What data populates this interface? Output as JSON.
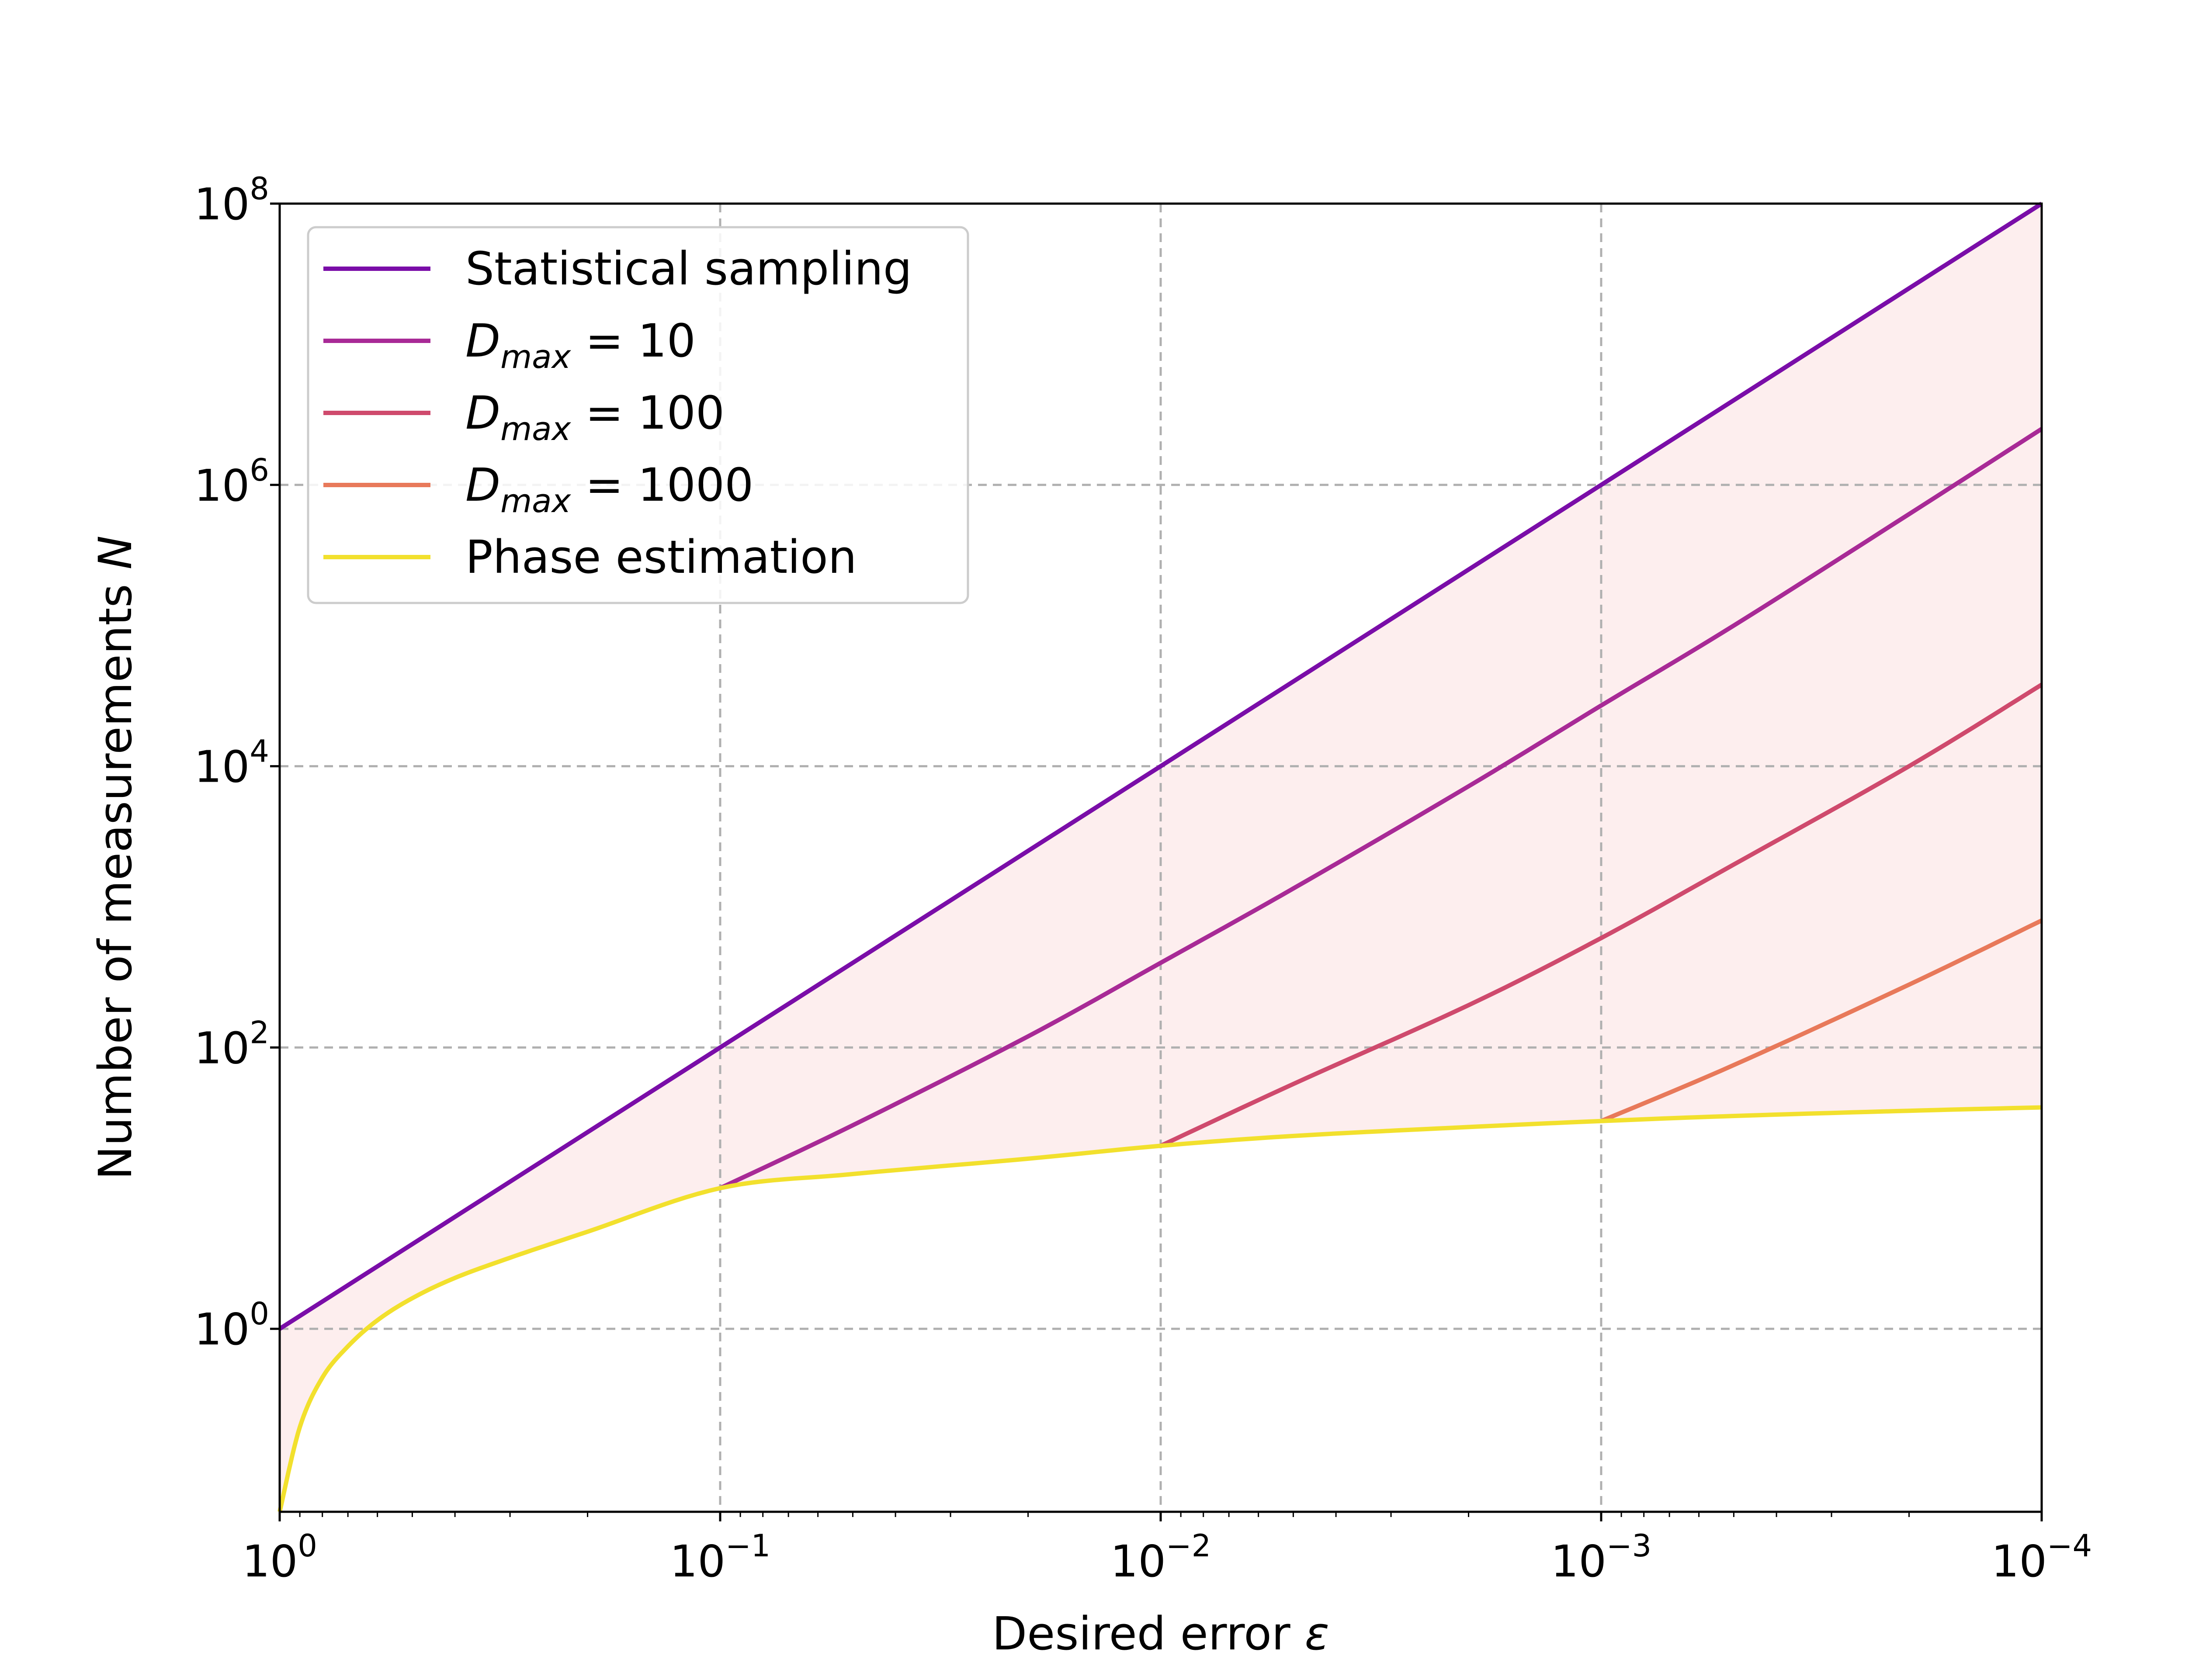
{
  "chart_data": {
    "type": "line",
    "xlabel_text": "Desired error ",
    "xlabel_symbol": "ε",
    "ylabel_text": "Number of measurements ",
    "ylabel_symbol": "N",
    "x_scale": "log",
    "x_reversed": true,
    "y_scale": "log",
    "xlim": [
      1,
      0.0001
    ],
    "ylim": [
      0.05,
      100000000
    ],
    "x_ticks": [
      {
        "base": "10",
        "exp": "0"
      },
      {
        "base": "10",
        "exp": "−1"
      },
      {
        "base": "10",
        "exp": "−2"
      },
      {
        "base": "10",
        "exp": "−3"
      },
      {
        "base": "10",
        "exp": "−4"
      }
    ],
    "x_tick_values": [
      1,
      0.1,
      0.01,
      0.001,
      0.0001
    ],
    "y_ticks": [
      {
        "base": "10",
        "exp": "0"
      },
      {
        "base": "10",
        "exp": "2"
      },
      {
        "base": "10",
        "exp": "4"
      },
      {
        "base": "10",
        "exp": "6"
      },
      {
        "base": "10",
        "exp": "8"
      }
    ],
    "y_tick_values": [
      1,
      100,
      10000,
      1000000,
      100000000
    ],
    "grid": true,
    "legend_position": "upper-left",
    "shaded_region": {
      "between": [
        "Statistical sampling",
        "Phase estimation"
      ],
      "color": "#fdeeee"
    },
    "series": [
      {
        "name": "Statistical sampling",
        "color": "#7a0da8",
        "x": [
          1,
          0.1,
          0.01,
          0.001,
          0.0001
        ],
        "y": [
          1,
          100,
          10000,
          1000000,
          100000000
        ]
      },
      {
        "name": "D_max = 10",
        "label_symbol": "D",
        "label_sub": "max",
        "label_value": " = 10",
        "color": "#a82a96",
        "x": [
          0.1,
          0.05,
          0.02,
          0.01,
          0.005,
          0.002,
          0.001,
          0.0005,
          0.0002,
          0.0001
        ],
        "y": [
          10,
          28,
          120,
          400,
          1350,
          7200,
          27000,
          100000,
          620000,
          2500000
        ]
      },
      {
        "name": "D_max = 100",
        "label_symbol": "D",
        "label_sub": "max",
        "label_value": " = 100",
        "color": "#cf4a6d",
        "x": [
          0.01,
          0.005,
          0.002,
          0.001,
          0.0005,
          0.0002,
          0.0001
        ],
        "y": [
          20,
          55,
          200,
          600,
          2000,
          10000,
          38000
        ]
      },
      {
        "name": "D_max = 1000",
        "label_symbol": "D",
        "label_sub": "max",
        "label_value": " = 1000",
        "color": "#e8795a",
        "x": [
          0.001,
          0.0005,
          0.0002,
          0.0001
        ],
        "y": [
          30,
          75,
          280,
          800
        ]
      },
      {
        "name": "Phase estimation",
        "color": "#f2e02d",
        "x": [
          1,
          0.9,
          0.8,
          0.7,
          0.6,
          0.5,
          0.4,
          0.3,
          0.2,
          0.1,
          0.05,
          0.02,
          0.01,
          0.005,
          0.002,
          0.001,
          0.0005,
          0.0002,
          0.0001
        ],
        "y": [
          0.05,
          0.2,
          0.45,
          0.75,
          1.15,
          1.65,
          2.3,
          3.2,
          4.9,
          10,
          12.6,
          16.2,
          20,
          23.5,
          27.2,
          30,
          32.6,
          35.5,
          37.5
        ]
      }
    ]
  }
}
